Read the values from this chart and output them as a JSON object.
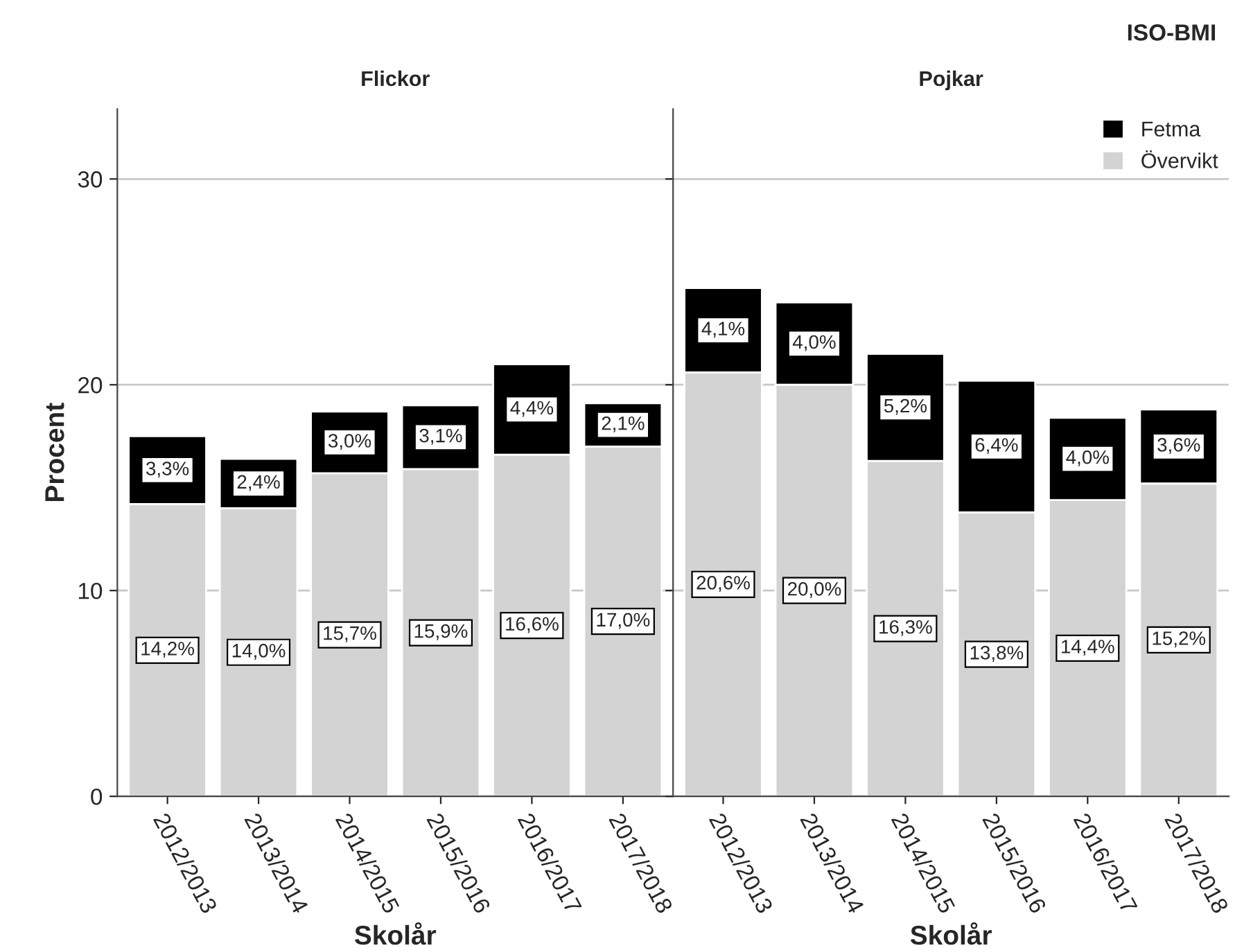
{
  "chart_data": [
    {
      "type": "bar",
      "stacked": true,
      "title": "Flickor",
      "xlabel": "Skolår",
      "ylabel": "Procent",
      "categories": [
        "2012/2013",
        "2013/2014",
        "2014/2015",
        "2015/2016",
        "2016/2017",
        "2017/2018"
      ],
      "series": [
        {
          "color": "#d3d3d3",
          "values": [
            14.2,
            14.0,
            15.7,
            15.9,
            16.6,
            17.0
          ],
          "value_labels": [
            "14,2%",
            "14,0%",
            "15,7%",
            "15,9%",
            "16,6%",
            "17,0%"
          ]
        },
        {
          "color": "#000000",
          "values": [
            3.3,
            2.4,
            3.0,
            3.1,
            4.4,
            2.1
          ],
          "value_labels": [
            "3,3%",
            "2,4%",
            "3,0%",
            "3,1%",
            "4,4%",
            "2,1%"
          ]
        }
      ],
      "ylim": [
        0,
        33.4
      ],
      "yticks": [
        0,
        10,
        20,
        30
      ],
      "grid": "y"
    },
    {
      "type": "bar",
      "stacked": true,
      "title": "Pojkar",
      "xlabel": "Skolår",
      "legend_title": "ISO-BMI",
      "legend": "top right",
      "tick_labels": "x",
      "categories": [
        "2012/2013",
        "2013/2014",
        "2014/2015",
        "2015/2016",
        "2016/2017",
        "2017/2018"
      ],
      "series": [
        {
          "name": "Övervikt",
          "color": "#d3d3d3",
          "values": [
            20.6,
            20.0,
            16.3,
            13.8,
            14.4,
            15.2
          ],
          "value_labels": [
            "20,6%",
            "20,0%",
            "16,3%",
            "13,8%",
            "14,4%",
            "15,2%"
          ]
        },
        {
          "name": "Fetma",
          "color": "#000000",
          "values": [
            4.1,
            4.0,
            5.2,
            6.4,
            4.0,
            3.6
          ],
          "value_labels": [
            "4,1%",
            "4,0%",
            "5,2%",
            "6,4%",
            "4,0%",
            "3,6%"
          ]
        }
      ],
      "ylim": [
        0,
        33.4
      ],
      "yticks": [
        0,
        10,
        20,
        30
      ],
      "grid": "y"
    }
  ]
}
